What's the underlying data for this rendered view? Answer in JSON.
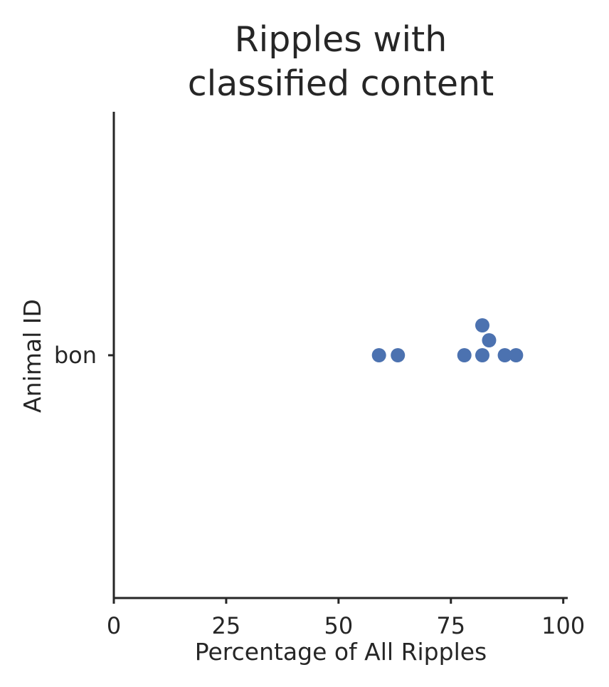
{
  "chart_data": {
    "type": "scatter",
    "title": [
      "Ripples with",
      "classified content"
    ],
    "xlabel": "Percentage of All Ripples",
    "ylabel": "Animal ID",
    "xlim": [
      0,
      101
    ],
    "xticks": [
      0,
      25,
      50,
      75,
      100
    ],
    "categories": [
      "bon"
    ],
    "series": [
      {
        "category": "bon",
        "values": [
          59,
          63.2,
          78,
          82,
          83.5,
          87,
          89.5,
          82
        ]
      }
    ],
    "color": "#4c72b0",
    "grid": false,
    "legend": "none"
  }
}
